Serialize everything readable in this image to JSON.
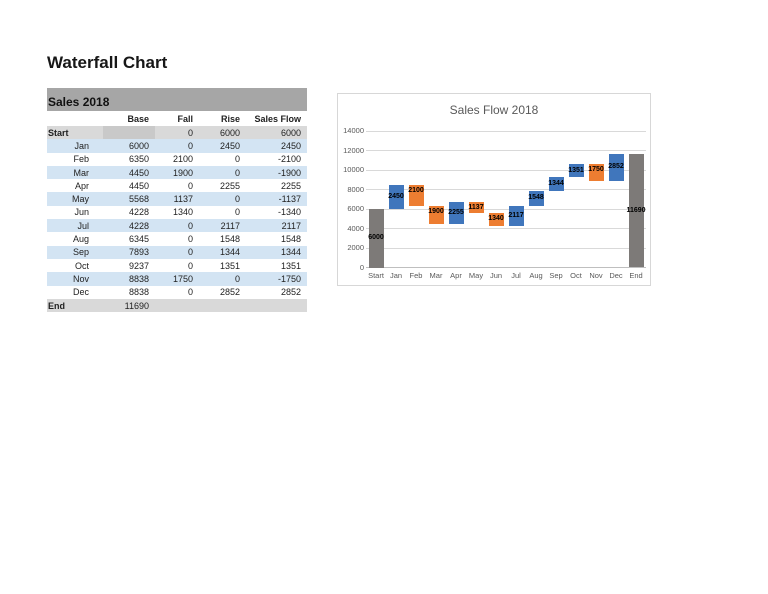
{
  "page": {
    "title": "Waterfall Chart"
  },
  "table": {
    "title": "Sales 2018",
    "headers": [
      "Base",
      "Fall",
      "Rise",
      "Sales Flow"
    ],
    "rows": [
      {
        "label": "Start",
        "base": "",
        "fall": "0",
        "rise": "6000",
        "flow": "6000",
        "kind": "total",
        "shaded": false
      },
      {
        "label": "Jan",
        "base": "6000",
        "fall": "0",
        "rise": "2450",
        "flow": "2450",
        "kind": "month",
        "shaded": true
      },
      {
        "label": "Feb",
        "base": "6350",
        "fall": "2100",
        "rise": "0",
        "flow": "-2100",
        "kind": "month",
        "shaded": false
      },
      {
        "label": "Mar",
        "base": "4450",
        "fall": "1900",
        "rise": "0",
        "flow": "-1900",
        "kind": "month",
        "shaded": true
      },
      {
        "label": "Apr",
        "base": "4450",
        "fall": "0",
        "rise": "2255",
        "flow": "2255",
        "kind": "month",
        "shaded": false
      },
      {
        "label": "May",
        "base": "5568",
        "fall": "1137",
        "rise": "0",
        "flow": "-1137",
        "kind": "month",
        "shaded": true
      },
      {
        "label": "Jun",
        "base": "4228",
        "fall": "1340",
        "rise": "0",
        "flow": "-1340",
        "kind": "month",
        "shaded": false
      },
      {
        "label": "Jul",
        "base": "4228",
        "fall": "0",
        "rise": "2117",
        "flow": "2117",
        "kind": "month",
        "shaded": true
      },
      {
        "label": "Aug",
        "base": "6345",
        "fall": "0",
        "rise": "1548",
        "flow": "1548",
        "kind": "month",
        "shaded": false
      },
      {
        "label": "Sep",
        "base": "7893",
        "fall": "0",
        "rise": "1344",
        "flow": "1344",
        "kind": "month",
        "shaded": true
      },
      {
        "label": "Oct",
        "base": "9237",
        "fall": "0",
        "rise": "1351",
        "flow": "1351",
        "kind": "month",
        "shaded": false
      },
      {
        "label": "Nov",
        "base": "8838",
        "fall": "1750",
        "rise": "0",
        "flow": "-1750",
        "kind": "month",
        "shaded": true
      },
      {
        "label": "Dec",
        "base": "8838",
        "fall": "0",
        "rise": "2852",
        "flow": "2852",
        "kind": "month",
        "shaded": false
      },
      {
        "label": "End",
        "base": "11690",
        "fall": "",
        "rise": "",
        "flow": "",
        "kind": "total",
        "shaded": false
      }
    ],
    "colors": {
      "band": "#a6a6a6",
      "total_row": "#d9d9d9",
      "stripe": "#d3e4f3",
      "start_base_cell": "#c9c9c9"
    }
  },
  "chart_data": {
    "type": "bar",
    "variant": "waterfall",
    "title": "Sales Flow 2018",
    "categories": [
      "Start",
      "Jan",
      "Feb",
      "Mar",
      "Apr",
      "May",
      "Jun",
      "Jul",
      "Aug",
      "Sep",
      "Oct",
      "Nov",
      "Dec",
      "End"
    ],
    "bars": [
      {
        "category": "Start",
        "from": 0,
        "to": 6000,
        "label": "6000",
        "series": "total"
      },
      {
        "category": "Jan",
        "from": 6000,
        "to": 8450,
        "label": "2450",
        "series": "rise"
      },
      {
        "category": "Feb",
        "from": 6350,
        "to": 8450,
        "label": "2100",
        "series": "fall"
      },
      {
        "category": "Mar",
        "from": 4450,
        "to": 6350,
        "label": "1900",
        "series": "fall"
      },
      {
        "category": "Apr",
        "from": 4450,
        "to": 6705,
        "label": "2255",
        "series": "rise"
      },
      {
        "category": "May",
        "from": 5568,
        "to": 6705,
        "label": "1137",
        "series": "fall"
      },
      {
        "category": "Jun",
        "from": 4228,
        "to": 5568,
        "label": "1340",
        "series": "fall"
      },
      {
        "category": "Jul",
        "from": 4228,
        "to": 6345,
        "label": "2117",
        "series": "rise"
      },
      {
        "category": "Aug",
        "from": 6345,
        "to": 7893,
        "label": "1548",
        "series": "rise"
      },
      {
        "category": "Sep",
        "from": 7893,
        "to": 9237,
        "label": "1344",
        "series": "rise"
      },
      {
        "category": "Oct",
        "from": 9237,
        "to": 10588,
        "label": "1351",
        "series": "rise"
      },
      {
        "category": "Nov",
        "from": 8838,
        "to": 10588,
        "label": "1750",
        "series": "fall"
      },
      {
        "category": "Dec",
        "from": 8838,
        "to": 11690,
        "label": "2852",
        "series": "rise"
      },
      {
        "category": "End",
        "from": 0,
        "to": 11690,
        "label": "11690",
        "series": "total"
      }
    ],
    "series_colors": {
      "rise": "#4076bc",
      "fall": "#ed7d31",
      "total": "#7d7a78"
    },
    "ylim": [
      0,
      14000
    ],
    "y_ticks": [
      0,
      2000,
      4000,
      6000,
      8000,
      10000,
      12000,
      14000
    ],
    "grid": true,
    "legend": "none"
  }
}
